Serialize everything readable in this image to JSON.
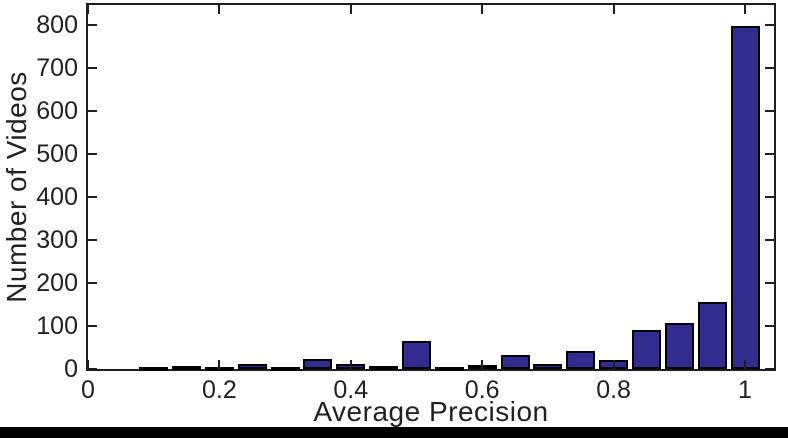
{
  "chart_data": {
    "type": "bar",
    "subtype": "histogram",
    "title": "",
    "xlabel": "Average Precision",
    "ylabel": "Number of Videos",
    "bin_centers": [
      0.05,
      0.1,
      0.15,
      0.2,
      0.25,
      0.3,
      0.35,
      0.4,
      0.45,
      0.5,
      0.55,
      0.6,
      0.65,
      0.7,
      0.75,
      0.8,
      0.85,
      0.9,
      0.95,
      1.0
    ],
    "values": [
      0,
      2,
      6,
      4,
      12,
      4,
      24,
      11,
      6,
      64,
      4,
      10,
      33,
      12,
      43,
      22,
      90,
      108,
      156,
      797
    ],
    "bin_width": 0.05,
    "x_ticks": [
      0,
      0.2,
      0.4,
      0.6,
      0.8,
      1.0
    ],
    "x_tick_labels": [
      "0",
      "0.2",
      "0.4",
      "0.6",
      "0.8",
      "1"
    ],
    "y_ticks": [
      0,
      100,
      200,
      300,
      400,
      500,
      600,
      700,
      800
    ],
    "y_tick_labels": [
      "0",
      "100",
      "200",
      "300",
      "400",
      "500",
      "600",
      "700",
      "800"
    ],
    "xlim": [
      0,
      1.045
    ],
    "ylim": [
      0,
      846
    ],
    "grid": false,
    "legend": null,
    "tick_direction": "in",
    "box": true,
    "bar_color": "#322c8e",
    "bar_edge_color": "#000000",
    "axis_color": "#1f1f1f",
    "text_color": "#222222",
    "background_color": "#ffffff",
    "bottom_strip_color": "#000000"
  }
}
